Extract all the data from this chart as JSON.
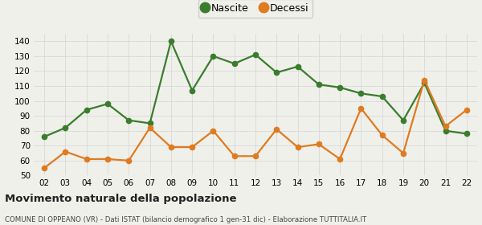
{
  "years": [
    "02",
    "03",
    "04",
    "05",
    "06",
    "07",
    "08",
    "09",
    "10",
    "11",
    "12",
    "13",
    "14",
    "15",
    "16",
    "17",
    "18",
    "19",
    "20",
    "21",
    "22"
  ],
  "nascite": [
    76,
    82,
    94,
    98,
    87,
    85,
    140,
    107,
    130,
    125,
    131,
    119,
    123,
    111,
    109,
    105,
    103,
    87,
    112,
    80,
    78
  ],
  "decessi": [
    55,
    66,
    61,
    61,
    60,
    82,
    69,
    69,
    80,
    63,
    63,
    81,
    69,
    71,
    61,
    95,
    77,
    65,
    114,
    83,
    94
  ],
  "nascite_color": "#3a7d2c",
  "decessi_color": "#e07b20",
  "bg_color": "#f0f0eb",
  "grid_color": "#d8d8d8",
  "ylim": [
    50,
    145
  ],
  "yticks": [
    50,
    60,
    70,
    80,
    90,
    100,
    110,
    120,
    130,
    140
  ],
  "title": "Movimento naturale della popolazione",
  "subtitle": "COMUNE DI OPPEANO (VR) - Dati ISTAT (bilancio demografico 1 gen-31 dic) - Elaborazione TUTTITALIA.IT",
  "legend_labels": [
    "Nascite",
    "Decessi"
  ],
  "marker_size": 4.5,
  "line_width": 1.6
}
